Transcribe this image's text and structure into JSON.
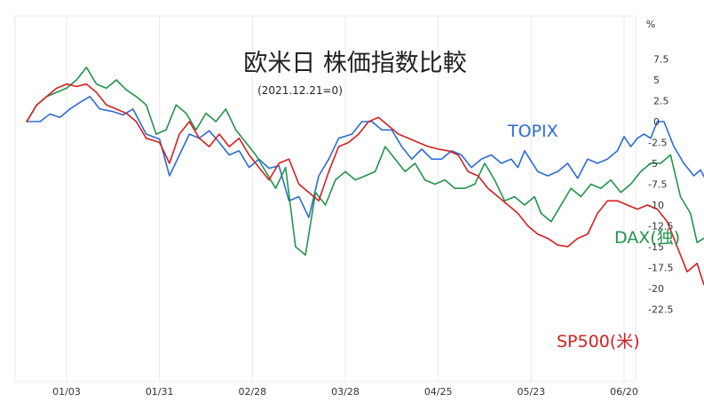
{
  "chart_data": {
    "type": "line",
    "title": "欧米日 株価指数比較",
    "subtitle": "(2021.12.21=0)",
    "y_unit": "%",
    "ylim": [
      -25,
      10
    ],
    "y_ticks": [
      7.5,
      5,
      2.5,
      0,
      -2.5,
      -5,
      -7.5,
      -10,
      -12.5,
      -15,
      -17.5,
      -20,
      -22.5
    ],
    "y_tick_labels": [
      "7.5",
      "5",
      "2.5",
      "0",
      "-2.5",
      "-5",
      "-7.5",
      "-10",
      "-12.5",
      "-15",
      "-17.5",
      "-20",
      "-22.5"
    ],
    "x_ticks": [
      "01/03",
      "01/31",
      "02/28",
      "03/28",
      "04/25",
      "05/23",
      "06/20"
    ],
    "x_tick_index": [
      12,
      40,
      68,
      96,
      124,
      152,
      180
    ],
    "grid": true,
    "colors": {
      "TOPIX": "#2b6cd6",
      "DAX": "#22944a",
      "SP500": "#d42020",
      "grid": "#e8e8e8"
    },
    "series": [
      {
        "name": "TOPIX",
        "label": "TOPIX",
        "color": "#2b6cd6",
        "values": [
          [
            0,
            0
          ],
          [
            4,
            0
          ],
          [
            7,
            0.9
          ],
          [
            10,
            0.5
          ],
          [
            13,
            1.5
          ],
          [
            16,
            2.3
          ],
          [
            19,
            3
          ],
          [
            22,
            1.5
          ],
          [
            26,
            1.2
          ],
          [
            29,
            0.8
          ],
          [
            32,
            1.5
          ],
          [
            36,
            -1.5
          ],
          [
            40,
            -2.1
          ],
          [
            43,
            -6.5
          ],
          [
            46,
            -4
          ],
          [
            49,
            -1.5
          ],
          [
            52,
            -2
          ],
          [
            55,
            -1.1
          ],
          [
            58,
            -2.5
          ],
          [
            61,
            -4
          ],
          [
            64,
            -3.5
          ],
          [
            67,
            -5.5
          ],
          [
            70,
            -4.5
          ],
          [
            73,
            -5.6
          ],
          [
            76,
            -5.3
          ],
          [
            79,
            -9.5
          ],
          [
            82,
            -9
          ],
          [
            85,
            -11.5
          ],
          [
            88,
            -6.5
          ],
          [
            91,
            -4.5
          ],
          [
            94,
            -2
          ],
          [
            98,
            -1.5
          ],
          [
            101,
            0
          ],
          [
            104,
            0
          ],
          [
            107,
            -1
          ],
          [
            110,
            -1
          ],
          [
            113,
            -3
          ],
          [
            116,
            -4.5
          ],
          [
            119,
            -3.3
          ],
          [
            122,
            -4.5
          ],
          [
            125,
            -4.5
          ],
          [
            128,
            -3.5
          ],
          [
            131,
            -4
          ],
          [
            134,
            -5.5
          ],
          [
            137,
            -4.5
          ],
          [
            140,
            -4
          ],
          [
            143,
            -5
          ],
          [
            146,
            -4.5
          ],
          [
            148,
            -5.5
          ],
          [
            150,
            -3.5
          ],
          [
            154,
            -6
          ],
          [
            157,
            -6.5
          ],
          [
            160,
            -6
          ],
          [
            163,
            -5
          ],
          [
            166,
            -6.8
          ],
          [
            169,
            -4.5
          ],
          [
            172,
            -5
          ],
          [
            175,
            -4.5
          ],
          [
            178,
            -3.5
          ],
          [
            180,
            -1.8
          ],
          [
            182,
            -3
          ],
          [
            184,
            -2
          ],
          [
            186,
            -1.5
          ],
          [
            188,
            -2
          ],
          [
            190,
            0
          ],
          [
            192,
            0
          ],
          [
            195,
            -3
          ],
          [
            198,
            -5
          ],
          [
            201,
            -6.5
          ],
          [
            203,
            -5.8
          ],
          [
            206,
            -8
          ]
        ]
      },
      {
        "name": "DAX",
        "label": "DAX(独)",
        "color": "#22944a",
        "values": [
          [
            0,
            0
          ],
          [
            3,
            2
          ],
          [
            6,
            3
          ],
          [
            9,
            3.5
          ],
          [
            12,
            4
          ],
          [
            15,
            5
          ],
          [
            18,
            6.5
          ],
          [
            21,
            4.5
          ],
          [
            24,
            4
          ],
          [
            27,
            5
          ],
          [
            30,
            3.8
          ],
          [
            33,
            3
          ],
          [
            36,
            2
          ],
          [
            39,
            -1.5
          ],
          [
            42,
            -1
          ],
          [
            45,
            2
          ],
          [
            48,
            1
          ],
          [
            51,
            -1
          ],
          [
            54,
            1
          ],
          [
            57,
            0
          ],
          [
            60,
            1.5
          ],
          [
            63,
            -1
          ],
          [
            66,
            -2.5
          ],
          [
            69,
            -4
          ],
          [
            72,
            -6
          ],
          [
            75,
            -8
          ],
          [
            78,
            -5.5
          ],
          [
            81,
            -15
          ],
          [
            84,
            -16
          ],
          [
            87,
            -8.5
          ],
          [
            90,
            -10
          ],
          [
            93,
            -7
          ],
          [
            96,
            -6
          ],
          [
            99,
            -7
          ],
          [
            102,
            -6.5
          ],
          [
            105,
            -6
          ],
          [
            108,
            -3
          ],
          [
            111,
            -4.5
          ],
          [
            114,
            -6
          ],
          [
            117,
            -5
          ],
          [
            120,
            -7
          ],
          [
            123,
            -7.5
          ],
          [
            126,
            -7
          ],
          [
            129,
            -8
          ],
          [
            132,
            -8
          ],
          [
            135,
            -7.5
          ],
          [
            138,
            -5
          ],
          [
            141,
            -7
          ],
          [
            144,
            -9.5
          ],
          [
            147,
            -9
          ],
          [
            150,
            -10
          ],
          [
            153,
            -9
          ],
          [
            155,
            -11
          ],
          [
            158,
            -12
          ],
          [
            161,
            -10
          ],
          [
            164,
            -8
          ],
          [
            167,
            -9
          ],
          [
            170,
            -7.5
          ],
          [
            173,
            -8
          ],
          [
            176,
            -7
          ],
          [
            179,
            -8.5
          ],
          [
            182,
            -7.5
          ],
          [
            185,
            -6
          ],
          [
            188,
            -5
          ],
          [
            191,
            -5
          ],
          [
            194,
            -4
          ],
          [
            197,
            -9
          ],
          [
            200,
            -11
          ],
          [
            202,
            -14.5
          ],
          [
            204,
            -14
          ],
          [
            206,
            -14
          ]
        ]
      },
      {
        "name": "SP500",
        "label": "SP500(米)",
        "color": "#d42020",
        "values": [
          [
            0,
            0
          ],
          [
            3,
            2
          ],
          [
            6,
            3
          ],
          [
            9,
            4
          ],
          [
            12,
            4.5
          ],
          [
            15,
            4.2
          ],
          [
            18,
            4.5
          ],
          [
            21,
            3.5
          ],
          [
            24,
            2
          ],
          [
            27,
            1.5
          ],
          [
            30,
            1
          ],
          [
            33,
            0
          ],
          [
            36,
            -2
          ],
          [
            40,
            -2.5
          ],
          [
            43,
            -5
          ],
          [
            46,
            -1.5
          ],
          [
            49,
            0
          ],
          [
            52,
            -2
          ],
          [
            55,
            -3
          ],
          [
            58,
            -1.5
          ],
          [
            61,
            -3
          ],
          [
            64,
            -2
          ],
          [
            67,
            -4
          ],
          [
            70,
            -5.5
          ],
          [
            73,
            -7
          ],
          [
            76,
            -5
          ],
          [
            79,
            -4.5
          ],
          [
            82,
            -7.5
          ],
          [
            85,
            -8.5
          ],
          [
            88,
            -9.5
          ],
          [
            91,
            -6
          ],
          [
            94,
            -3
          ],
          [
            97,
            -2.5
          ],
          [
            100,
            -1.5
          ],
          [
            103,
            0
          ],
          [
            106,
            0.5
          ],
          [
            109,
            -0.5
          ],
          [
            112,
            -1.5
          ],
          [
            115,
            -2
          ],
          [
            118,
            -2.5
          ],
          [
            121,
            -3
          ],
          [
            124,
            -3.3
          ],
          [
            127,
            -3.5
          ],
          [
            130,
            -4
          ],
          [
            133,
            -6
          ],
          [
            136,
            -6.5
          ],
          [
            139,
            -8
          ],
          [
            142,
            -9
          ],
          [
            145,
            -10
          ],
          [
            148,
            -11
          ],
          [
            151,
            -12.5
          ],
          [
            154,
            -13.5
          ],
          [
            157,
            -14
          ],
          [
            160,
            -14.8
          ],
          [
            163,
            -15
          ],
          [
            166,
            -14
          ],
          [
            169,
            -13.5
          ],
          [
            172,
            -11
          ],
          [
            175,
            -9.5
          ],
          [
            178,
            -9.5
          ],
          [
            181,
            -10
          ],
          [
            184,
            -10.5
          ],
          [
            187,
            -10
          ],
          [
            190,
            -10.5
          ],
          [
            193,
            -12
          ],
          [
            196,
            -15
          ],
          [
            199,
            -18
          ],
          [
            202,
            -17
          ],
          [
            204,
            -19.5
          ],
          [
            206,
            -20
          ]
        ]
      }
    ]
  }
}
